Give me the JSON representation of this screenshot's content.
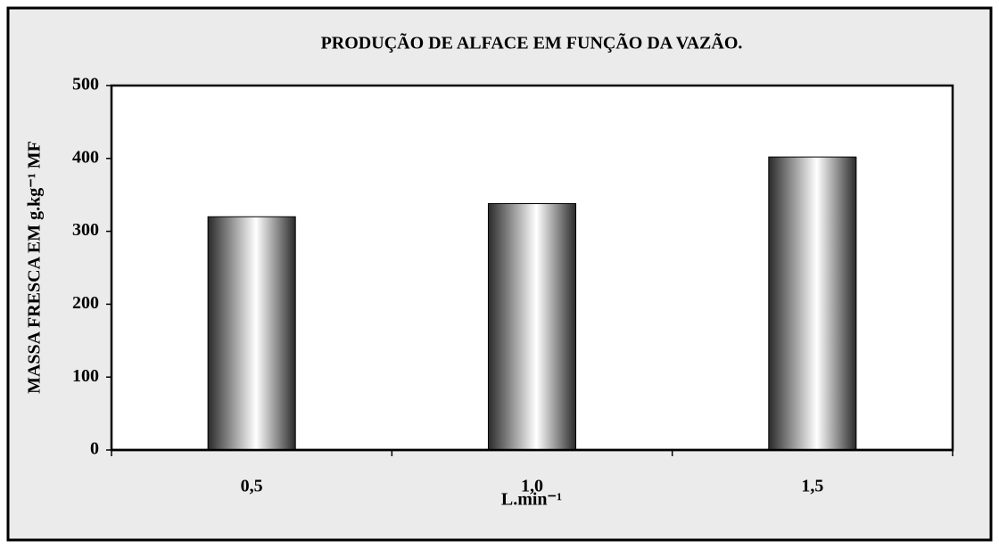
{
  "chart_data": {
    "type": "bar",
    "title": "PRODUÇÃO DE ALFACE EM FUNÇÃO DA VAZÃO.",
    "y_label": "MASSA FRESCA EM  g.kg⁻¹ MF",
    "x_label": "L.min⁻¹",
    "categories": [
      "0,5",
      "1,0",
      "1,5"
    ],
    "values": [
      320,
      338,
      402
    ],
    "color": "#555555",
    "ylim": [
      0,
      500
    ],
    "yticks": [
      0,
      100,
      200,
      300,
      400,
      500
    ],
    "grid": false
  }
}
